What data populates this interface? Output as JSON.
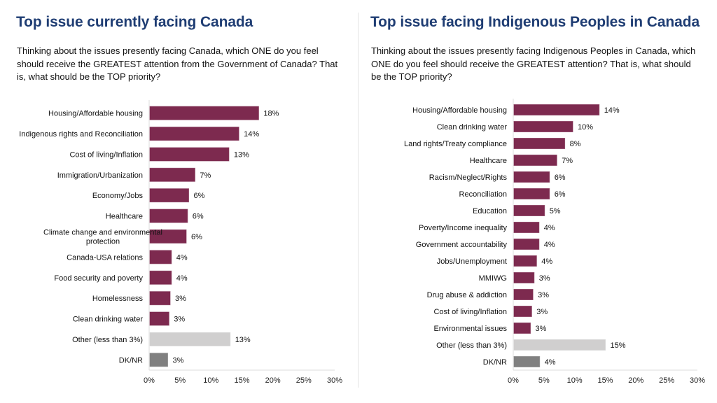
{
  "page": {
    "divider": true
  },
  "panels": [
    {
      "title": "Top issue currently facing Canada",
      "question": "Thinking about the issues presently facing Canada, which ONE do you feel should receive the GREATEST attention from the Government of Canada? That is, what should be the TOP priority?"
    },
    {
      "title": "Top issue facing Indigenous Peoples in Canada",
      "question": "Thinking about the issues presently facing Indigenous Peoples in Canada, which ONE do you feel should receive the GREATEST attention? That is, what should be the TOP priority?"
    }
  ],
  "colors": {
    "title": "#1f3d73",
    "bar_primary": "#7d2a4f",
    "bar_other": "#d0cfcf",
    "bar_dknr": "#808080",
    "axis": "#dddddd"
  },
  "chart_data": [
    {
      "type": "bar",
      "orientation": "horizontal",
      "title": "Top issue currently facing Canada",
      "categories": [
        "Housing/Affordable housing",
        "Indigenous rights and Reconciliation",
        "Cost of living/Inflation",
        "Immigration/Urbanization",
        "Economy/Jobs",
        "Healthcare",
        "Climate change and environmental protection",
        "Canada-USA relations",
        "Food security and poverty",
        "Homelessness",
        "Clean drinking water",
        "Other (less than 3%)",
        "DK/NR"
      ],
      "category_lines": [
        [
          "Housing/Affordable housing"
        ],
        [
          "Indigenous rights and Reconciliation"
        ],
        [
          "Cost of living/Inflation"
        ],
        [
          "Immigration/Urbanization"
        ],
        [
          "Economy/Jobs"
        ],
        [
          "Healthcare"
        ],
        [
          "Climate change and environmental",
          "protection"
        ],
        [
          "Canada-USA relations"
        ],
        [
          "Food security and poverty"
        ],
        [
          "Homelessness"
        ],
        [
          "Clean drinking water"
        ],
        [
          "Other (less than 3%)"
        ],
        [
          "DK/NR"
        ]
      ],
      "values": [
        18,
        14,
        13,
        7,
        6,
        6,
        6,
        4,
        4,
        3,
        3,
        13,
        3
      ],
      "bar_values_exact": [
        17.7,
        14.5,
        12.9,
        7.4,
        6.4,
        6.2,
        6.0,
        3.6,
        3.6,
        3.4,
        3.2,
        13.1,
        3.0
      ],
      "value_labels": [
        "18%",
        "14%",
        "13%",
        "7%",
        "6%",
        "6%",
        "6%",
        "4%",
        "4%",
        "3%",
        "3%",
        "13%",
        "3%"
      ],
      "bar_kinds": [
        "primary",
        "primary",
        "primary",
        "primary",
        "primary",
        "primary",
        "primary",
        "primary",
        "primary",
        "primary",
        "primary",
        "other",
        "dknr"
      ],
      "xlim": [
        0,
        30
      ],
      "xticks": [
        0,
        5,
        10,
        15,
        20,
        25,
        30
      ],
      "xtick_labels": [
        "0%",
        "5%",
        "10%",
        "15%",
        "20%",
        "25%",
        "30%"
      ],
      "xlabel": "",
      "ylabel": "",
      "grid": false,
      "legend": "none"
    },
    {
      "type": "bar",
      "orientation": "horizontal",
      "title": "Top issue facing Indigenous Peoples in Canada",
      "categories": [
        "Housing/Affordable housing",
        "Clean drinking water",
        "Land rights/Treaty compliance",
        "Healthcare",
        "Racism/Neglect/Rights",
        "Reconciliation",
        "Education",
        "Poverty/Income inequality",
        "Government accountability",
        "Jobs/Unemployment",
        "MMIWG",
        "Drug abuse & addiction",
        "Cost of living/Inflation",
        "Environmental issues",
        "Other (less than 3%)",
        "DK/NR"
      ],
      "category_lines": [
        [
          "Housing/Affordable housing"
        ],
        [
          "Clean drinking water"
        ],
        [
          "Land rights/Treaty compliance"
        ],
        [
          "Healthcare"
        ],
        [
          "Racism/Neglect/Rights"
        ],
        [
          "Reconciliation"
        ],
        [
          "Education"
        ],
        [
          "Poverty/Income inequality"
        ],
        [
          "Government accountability"
        ],
        [
          "Jobs/Unemployment"
        ],
        [
          "MMIWG"
        ],
        [
          "Drug abuse & addiction"
        ],
        [
          "Cost of living/Inflation"
        ],
        [
          "Environmental issues"
        ],
        [
          "Other (less than 3%)"
        ],
        [
          "DK/NR"
        ]
      ],
      "values": [
        14,
        10,
        8,
        7,
        6,
        6,
        5,
        4,
        4,
        4,
        3,
        3,
        3,
        3,
        15,
        4
      ],
      "bar_values_exact": [
        14.0,
        9.7,
        8.4,
        7.1,
        5.9,
        5.9,
        5.1,
        4.2,
        4.2,
        3.8,
        3.4,
        3.2,
        3.0,
        2.8,
        15.0,
        4.3
      ],
      "value_labels": [
        "14%",
        "10%",
        "8%",
        "7%",
        "6%",
        "6%",
        "5%",
        "4%",
        "4%",
        "4%",
        "3%",
        "3%",
        "3%",
        "3%",
        "15%",
        "4%"
      ],
      "bar_kinds": [
        "primary",
        "primary",
        "primary",
        "primary",
        "primary",
        "primary",
        "primary",
        "primary",
        "primary",
        "primary",
        "primary",
        "primary",
        "primary",
        "primary",
        "other",
        "dknr"
      ],
      "xlim": [
        0,
        30
      ],
      "xticks": [
        0,
        5,
        10,
        15,
        20,
        25,
        30
      ],
      "xtick_labels": [
        "0%",
        "5%",
        "10%",
        "15%",
        "20%",
        "25%",
        "30%"
      ],
      "xlabel": "",
      "ylabel": "",
      "grid": false,
      "legend": "none"
    }
  ]
}
